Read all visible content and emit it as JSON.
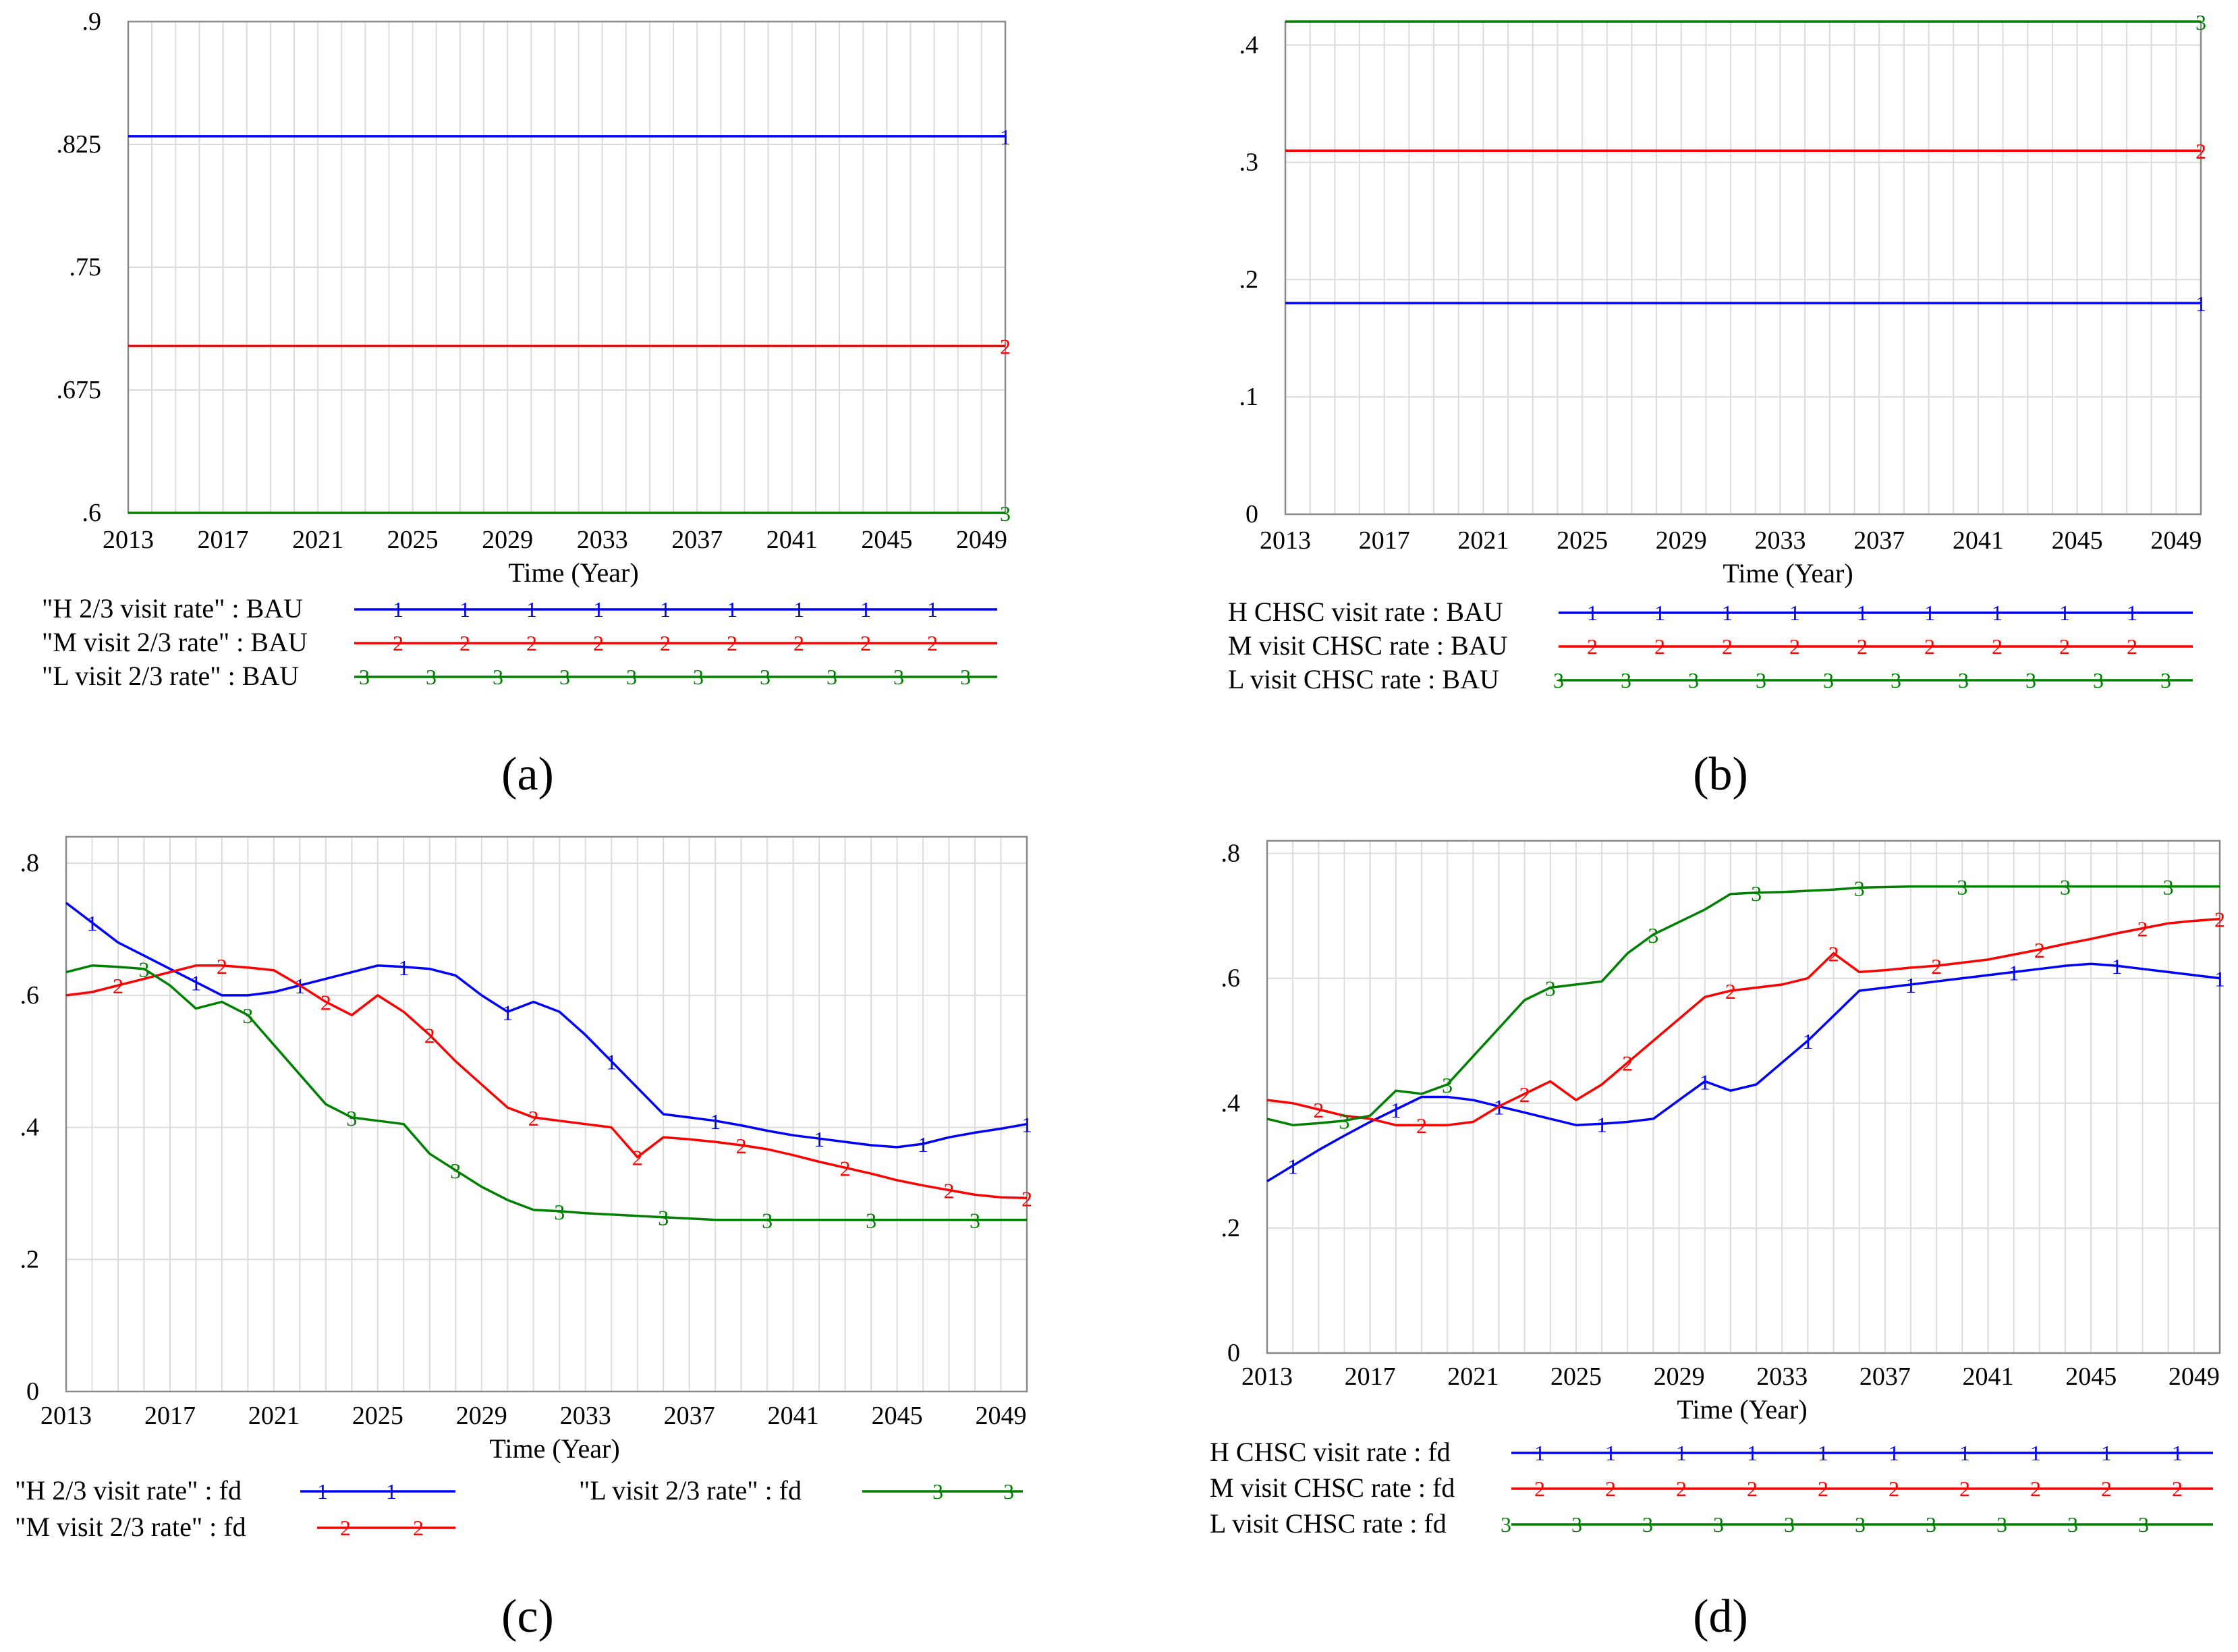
{
  "figure": {
    "colors": {
      "series1": "#0000ff",
      "series2": "#ff0000",
      "series3": "#008000",
      "grid": "#dcdcdc",
      "frame": "#8a8a8a"
    }
  },
  "chart_data": [
    {
      "id": "a",
      "panel_label": "(a)",
      "type": "line",
      "xlabel": "Time (Year)",
      "ylabel": "",
      "xlim": [
        2013,
        2050
      ],
      "ylim": [
        0.6,
        0.9
      ],
      "x_ticks": [
        2013,
        2017,
        2021,
        2025,
        2029,
        2033,
        2037,
        2041,
        2045,
        2049
      ],
      "y_ticks": [
        {
          "v": 0.9,
          "label": ".9"
        },
        {
          "v": 0.825,
          "label": ".825"
        },
        {
          "v": 0.75,
          "label": ".75"
        },
        {
          "v": 0.675,
          "label": ".675"
        },
        {
          "v": 0.6,
          "label": ".6"
        }
      ],
      "grid": true,
      "legend": {
        "placement": "bottom",
        "columns": 1
      },
      "series": [
        {
          "name": "\"H 2/3 visit rate\" : BAU",
          "marker": "1",
          "x": [
            2013,
            2050
          ],
          "values": [
            0.83,
            0.83
          ]
        },
        {
          "name": "\"M visit 2/3 rate\" : BAU",
          "marker": "2",
          "x": [
            2013,
            2050
          ],
          "values": [
            0.702,
            0.702
          ]
        },
        {
          "name": "\"L visit 2/3 rate\" : BAU",
          "marker": "3",
          "x": [
            2013,
            2050
          ],
          "values": [
            0.6,
            0.6
          ]
        }
      ]
    },
    {
      "id": "b",
      "panel_label": "(b)",
      "type": "line",
      "xlabel": "Time (Year)",
      "ylabel": "",
      "xlim": [
        2013,
        2050
      ],
      "ylim": [
        0,
        0.42
      ],
      "x_ticks": [
        2013,
        2017,
        2021,
        2025,
        2029,
        2033,
        2037,
        2041,
        2045,
        2049
      ],
      "y_ticks": [
        {
          "v": 0.4,
          "label": ".4"
        },
        {
          "v": 0.3,
          "label": ".3"
        },
        {
          "v": 0.2,
          "label": ".2"
        },
        {
          "v": 0.1,
          "label": ".1"
        },
        {
          "v": 0,
          "label": "0"
        }
      ],
      "grid": true,
      "legend": {
        "placement": "bottom",
        "columns": 1
      },
      "series": [
        {
          "name": "H CHSC visit rate : BAU",
          "marker": "1",
          "x": [
            2013,
            2050
          ],
          "values": [
            0.18,
            0.18
          ]
        },
        {
          "name": "M visit CHSC rate : BAU",
          "marker": "2",
          "x": [
            2013,
            2050
          ],
          "values": [
            0.31,
            0.31
          ]
        },
        {
          "name": "L visit CHSC rate : BAU",
          "marker": "3",
          "x": [
            2013,
            2050
          ],
          "values": [
            0.42,
            0.42
          ]
        }
      ]
    },
    {
      "id": "c",
      "panel_label": "(c)",
      "type": "line",
      "xlabel": "Time (Year)",
      "ylabel": "",
      "xlim": [
        2013,
        2050
      ],
      "ylim": [
        0,
        0.84
      ],
      "x_ticks": [
        2013,
        2017,
        2021,
        2025,
        2029,
        2033,
        2037,
        2041,
        2045,
        2049
      ],
      "y_ticks": [
        {
          "v": 0.8,
          "label": ".8"
        },
        {
          "v": 0.6,
          "label": ".6"
        },
        {
          "v": 0.4,
          "label": ".4"
        },
        {
          "v": 0.2,
          "label": ".2"
        },
        {
          "v": 0,
          "label": "0"
        }
      ],
      "grid": true,
      "legend": {
        "placement": "bottom",
        "columns": 2
      },
      "series": [
        {
          "name": "\"H 2/3 visit rate\" : fd",
          "marker": "1",
          "x": [
            2013,
            2014,
            2015,
            2016,
            2017,
            2018,
            2019,
            2020,
            2021,
            2022,
            2023,
            2024,
            2025,
            2026,
            2027,
            2028,
            2029,
            2030,
            2031,
            2032,
            2033,
            2034,
            2035,
            2036,
            2037,
            2038,
            2039,
            2040,
            2041,
            2042,
            2043,
            2044,
            2045,
            2046,
            2047,
            2048,
            2049,
            2050
          ],
          "values": [
            0.74,
            0.71,
            0.68,
            0.66,
            0.64,
            0.62,
            0.6,
            0.6,
            0.605,
            0.615,
            0.625,
            0.635,
            0.645,
            0.643,
            0.64,
            0.63,
            0.6,
            0.575,
            0.59,
            0.575,
            0.54,
            0.5,
            0.46,
            0.42,
            0.415,
            0.41,
            0.403,
            0.395,
            0.388,
            0.383,
            0.378,
            0.373,
            0.37,
            0.375,
            0.385,
            0.392,
            0.398,
            0.405
          ]
        },
        {
          "name": "\"M visit 2/3 rate\" : fd",
          "marker": "2",
          "x": [
            2013,
            2014,
            2015,
            2016,
            2017,
            2018,
            2019,
            2020,
            2021,
            2022,
            2023,
            2024,
            2025,
            2026,
            2027,
            2028,
            2029,
            2030,
            2031,
            2032,
            2033,
            2034,
            2035,
            2036,
            2037,
            2038,
            2039,
            2040,
            2041,
            2042,
            2043,
            2044,
            2045,
            2046,
            2047,
            2048,
            2049,
            2050
          ],
          "values": [
            0.6,
            0.605,
            0.615,
            0.625,
            0.635,
            0.645,
            0.645,
            0.642,
            0.638,
            0.615,
            0.59,
            0.57,
            0.6,
            0.575,
            0.54,
            0.5,
            0.465,
            0.43,
            0.415,
            0.41,
            0.405,
            0.4,
            0.355,
            0.385,
            0.382,
            0.378,
            0.373,
            0.367,
            0.358,
            0.348,
            0.339,
            0.33,
            0.32,
            0.312,
            0.305,
            0.298,
            0.294,
            0.293
          ]
        },
        {
          "name": "\"L visit 2/3 rate\" : fd",
          "marker": "3",
          "x": [
            2013,
            2014,
            2015,
            2016,
            2017,
            2018,
            2019,
            2020,
            2021,
            2022,
            2023,
            2024,
            2025,
            2026,
            2027,
            2028,
            2029,
            2030,
            2031,
            2032,
            2033,
            2034,
            2035,
            2036,
            2037,
            2038,
            2039,
            2040,
            2041,
            2042,
            2043,
            2044,
            2045,
            2046,
            2047,
            2048,
            2049,
            2050
          ],
          "values": [
            0.635,
            0.645,
            0.643,
            0.64,
            0.615,
            0.58,
            0.59,
            0.57,
            0.525,
            0.48,
            0.435,
            0.415,
            0.41,
            0.405,
            0.36,
            0.335,
            0.31,
            0.29,
            0.275,
            0.273,
            0.27,
            0.268,
            0.266,
            0.264,
            0.262,
            0.26,
            0.26,
            0.26,
            0.26,
            0.26,
            0.26,
            0.26,
            0.26,
            0.26,
            0.26,
            0.26,
            0.26,
            0.26
          ]
        }
      ]
    },
    {
      "id": "d",
      "panel_label": "(d)",
      "type": "line",
      "xlabel": "Time (Year)",
      "ylabel": "",
      "xlim": [
        2013,
        2050
      ],
      "ylim": [
        0,
        0.82
      ],
      "x_ticks": [
        2013,
        2017,
        2021,
        2025,
        2029,
        2033,
        2037,
        2041,
        2045,
        2049
      ],
      "y_ticks": [
        {
          "v": 0.8,
          "label": ".8"
        },
        {
          "v": 0.6,
          "label": ".6"
        },
        {
          "v": 0.4,
          "label": ".4"
        },
        {
          "v": 0.2,
          "label": ".2"
        },
        {
          "v": 0,
          "label": "0"
        }
      ],
      "grid": true,
      "legend": {
        "placement": "bottom",
        "columns": 1
      },
      "series": [
        {
          "name": "H CHSC visit rate : fd",
          "marker": "1",
          "x": [
            2013,
            2014,
            2015,
            2016,
            2017,
            2018,
            2019,
            2020,
            2021,
            2022,
            2023,
            2024,
            2025,
            2026,
            2027,
            2028,
            2029,
            2030,
            2031,
            2032,
            2033,
            2034,
            2035,
            2036,
            2037,
            2038,
            2039,
            2040,
            2041,
            2042,
            2043,
            2044,
            2045,
            2046,
            2047,
            2048,
            2049,
            2050
          ],
          "values": [
            0.275,
            0.3,
            0.325,
            0.348,
            0.37,
            0.39,
            0.41,
            0.41,
            0.405,
            0.395,
            0.385,
            0.375,
            0.365,
            0.367,
            0.37,
            0.375,
            0.405,
            0.435,
            0.42,
            0.43,
            0.465,
            0.5,
            0.54,
            0.58,
            0.585,
            0.59,
            0.595,
            0.6,
            0.605,
            0.61,
            0.615,
            0.62,
            0.623,
            0.62,
            0.615,
            0.61,
            0.605,
            0.6
          ]
        },
        {
          "name": "M visit CHSC rate : fd",
          "marker": "2",
          "x": [
            2013,
            2014,
            2015,
            2016,
            2017,
            2018,
            2019,
            2020,
            2021,
            2022,
            2023,
            2024,
            2025,
            2026,
            2027,
            2028,
            2029,
            2030,
            2031,
            2032,
            2033,
            2034,
            2035,
            2036,
            2037,
            2038,
            2039,
            2040,
            2041,
            2042,
            2043,
            2044,
            2045,
            2046,
            2047,
            2048,
            2049,
            2050
          ],
          "values": [
            0.405,
            0.4,
            0.39,
            0.38,
            0.375,
            0.365,
            0.365,
            0.365,
            0.37,
            0.395,
            0.415,
            0.435,
            0.405,
            0.43,
            0.465,
            0.5,
            0.535,
            0.57,
            0.58,
            0.585,
            0.59,
            0.6,
            0.64,
            0.61,
            0.613,
            0.617,
            0.62,
            0.625,
            0.63,
            0.638,
            0.646,
            0.655,
            0.663,
            0.672,
            0.68,
            0.688,
            0.692,
            0.695
          ]
        },
        {
          "name": "L visit CHSC rate : fd",
          "marker": "3",
          "x": [
            2013,
            2014,
            2015,
            2016,
            2017,
            2018,
            2019,
            2020,
            2021,
            2022,
            2023,
            2024,
            2025,
            2026,
            2027,
            2028,
            2029,
            2030,
            2031,
            2032,
            2033,
            2034,
            2035,
            2036,
            2037,
            2038,
            2039,
            2040,
            2041,
            2042,
            2043,
            2044,
            2045,
            2046,
            2047,
            2048,
            2049,
            2050
          ],
          "values": [
            0.375,
            0.365,
            0.368,
            0.372,
            0.38,
            0.42,
            0.415,
            0.43,
            0.475,
            0.52,
            0.565,
            0.585,
            0.59,
            0.595,
            0.64,
            0.67,
            0.69,
            0.71,
            0.735,
            0.737,
            0.738,
            0.74,
            0.742,
            0.745,
            0.746,
            0.747,
            0.747,
            0.747,
            0.747,
            0.747,
            0.747,
            0.747,
            0.747,
            0.747,
            0.747,
            0.747,
            0.747,
            0.747
          ]
        }
      ]
    }
  ]
}
